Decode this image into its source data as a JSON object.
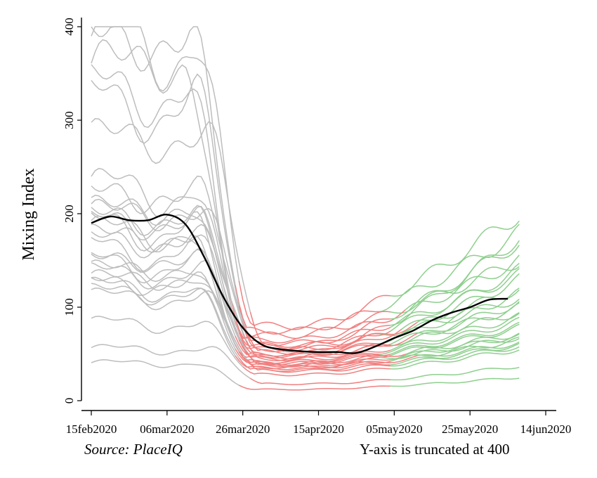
{
  "chart_data": {
    "type": "line",
    "ylabel": "Mixing Index",
    "x_ticks": [
      "15feb2020",
      "06mar2020",
      "26mar2020",
      "15apr2020",
      "05may2020",
      "25may2020",
      "14jun2020"
    ],
    "y_ticks": [
      "0",
      "100",
      "200",
      "300",
      "400"
    ],
    "xlim": [
      "2020-02-15",
      "2020-06-14"
    ],
    "ylim": [
      0,
      400
    ],
    "grid": false,
    "legend": "none",
    "colors": {
      "before": "#bdbdbd",
      "lockdown": "#f08080",
      "reopened": "#8fcf8f",
      "average": "#000000"
    },
    "average_series": {
      "x": [
        "2020-02-15",
        "2020-02-20",
        "2020-02-25",
        "2020-03-01",
        "2020-03-06",
        "2020-03-11",
        "2020-03-16",
        "2020-03-21",
        "2020-03-26",
        "2020-03-31",
        "2020-04-05",
        "2020-04-10",
        "2020-04-15",
        "2020-04-20",
        "2020-04-25",
        "2020-04-30",
        "2020-05-05",
        "2020-05-10",
        "2020-05-15",
        "2020-05-20",
        "2020-05-25",
        "2020-05-30",
        "2020-06-04"
      ],
      "y": [
        190,
        197,
        193,
        193,
        199,
        188,
        152,
        110,
        78,
        60,
        55,
        53,
        52,
        52,
        51,
        58,
        67,
        75,
        86,
        94,
        100,
        108,
        109
      ]
    },
    "state_series_params": [
      {
        "start": "2020-02-15",
        "base": 380,
        "low": 80,
        "end": 200,
        "lockdown": "2020-03-25",
        "reopen": "2020-05-04"
      },
      {
        "start": "2020-02-15",
        "base": 385,
        "low": 75,
        "end": 180,
        "lockdown": "2020-03-24",
        "reopen": "2020-05-01"
      },
      {
        "start": "2020-02-15",
        "base": 360,
        "low": 70,
        "end": 150,
        "lockdown": "2020-03-22",
        "reopen": "2020-05-04"
      },
      {
        "start": "2020-02-15",
        "base": 330,
        "low": 65,
        "end": 150,
        "lockdown": "2020-03-23",
        "reopen": "2020-05-08"
      },
      {
        "start": "2020-02-15",
        "base": 315,
        "low": 62,
        "end": 135,
        "lockdown": "2020-03-25",
        "reopen": "2020-05-04"
      },
      {
        "start": "2020-02-15",
        "base": 280,
        "low": 60,
        "end": 110,
        "lockdown": "2020-03-28",
        "reopen": "2020-05-01"
      },
      {
        "start": "2020-02-15",
        "base": 225,
        "low": 58,
        "end": 170,
        "lockdown": "2020-03-24",
        "reopen": "2020-05-04"
      },
      {
        "start": "2020-02-15",
        "base": 220,
        "low": 55,
        "end": 140,
        "lockdown": "2020-03-26",
        "reopen": "2020-05-04"
      },
      {
        "start": "2020-02-15",
        "base": 205,
        "low": 55,
        "end": 120,
        "lockdown": "2020-03-24",
        "reopen": "2020-05-11"
      },
      {
        "start": "2020-02-15",
        "base": 200,
        "low": 52,
        "end": 175,
        "lockdown": "2020-03-27",
        "reopen": "2020-05-04"
      },
      {
        "start": "2020-02-15",
        "base": 195,
        "low": 50,
        "end": 130,
        "lockdown": "2020-03-25",
        "reopen": "2020-05-07"
      },
      {
        "start": "2020-02-15",
        "base": 190,
        "low": 50,
        "end": 100,
        "lockdown": "2020-03-26",
        "reopen": "2020-05-04"
      },
      {
        "start": "2020-02-15",
        "base": 185,
        "low": 48,
        "end": 115,
        "lockdown": "2020-03-24",
        "reopen": "2020-05-01"
      },
      {
        "start": "2020-02-15",
        "base": 180,
        "low": 47,
        "end": 95,
        "lockdown": "2020-03-23",
        "reopen": "2020-05-04"
      },
      {
        "start": "2020-02-15",
        "base": 175,
        "low": 45,
        "end": 105,
        "lockdown": "2020-03-25",
        "reopen": "2020-05-11"
      },
      {
        "start": "2020-02-15",
        "base": 170,
        "low": 45,
        "end": 90,
        "lockdown": "2020-03-27",
        "reopen": "2020-05-04"
      },
      {
        "start": "2020-02-15",
        "base": 160,
        "low": 42,
        "end": 85,
        "lockdown": "2020-03-24",
        "reopen": "2020-05-01"
      },
      {
        "start": "2020-02-15",
        "base": 150,
        "low": 42,
        "end": 80,
        "lockdown": "2020-03-26",
        "reopen": "2020-05-04"
      },
      {
        "start": "2020-02-15",
        "base": 145,
        "low": 40,
        "end": 78,
        "lockdown": "2020-03-25",
        "reopen": "2020-05-04"
      },
      {
        "start": "2020-02-15",
        "base": 140,
        "low": 40,
        "end": 72,
        "lockdown": "2020-03-24",
        "reopen": "2020-05-08"
      },
      {
        "start": "2020-02-15",
        "base": 135,
        "low": 38,
        "end": 70,
        "lockdown": "2020-03-27",
        "reopen": "2020-05-04"
      },
      {
        "start": "2020-02-15",
        "base": 130,
        "low": 38,
        "end": 68,
        "lockdown": "2020-03-25",
        "reopen": "2020-05-01"
      },
      {
        "start": "2020-02-15",
        "base": 125,
        "low": 36,
        "end": 65,
        "lockdown": "2020-03-26",
        "reopen": "2020-05-04"
      },
      {
        "start": "2020-02-15",
        "base": 120,
        "low": 35,
        "end": 62,
        "lockdown": "2020-03-24",
        "reopen": "2020-05-11"
      },
      {
        "start": "2020-02-15",
        "base": 115,
        "low": 33,
        "end": 60,
        "lockdown": "2020-03-25",
        "reopen": "2020-05-04"
      },
      {
        "start": "2020-02-15",
        "base": 110,
        "low": 32,
        "end": 58,
        "lockdown": "2020-03-27",
        "reopen": "2020-05-04"
      },
      {
        "start": "2020-02-15",
        "base": 82,
        "low": 28,
        "end": 55,
        "lockdown": "2020-03-26",
        "reopen": "2020-05-04"
      },
      {
        "start": "2020-02-15",
        "base": 55,
        "low": 18,
        "end": 37,
        "lockdown": "2020-03-28",
        "reopen": "2020-05-04"
      },
      {
        "start": "2020-02-15",
        "base": 40,
        "low": 12,
        "end": 25,
        "lockdown": "2020-03-25",
        "reopen": "2020-05-04"
      }
    ]
  },
  "notes": {
    "source": "Source: PlaceIQ",
    "truncation": "Y-axis is truncated at 400"
  }
}
